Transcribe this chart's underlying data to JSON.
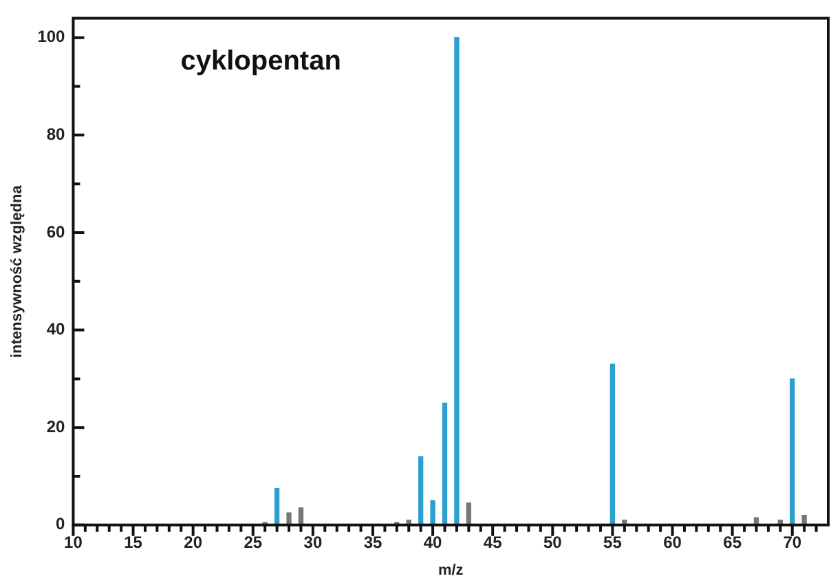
{
  "chart_data": {
    "type": "bar",
    "title": "cyklopentan",
    "xlabel": "m/z",
    "ylabel": "intensywność względna",
    "x": [
      26,
      27,
      28,
      29,
      37,
      38,
      39,
      40,
      41,
      42,
      43,
      55,
      56,
      67,
      69,
      70,
      71
    ],
    "values": [
      0.5,
      7.5,
      2.5,
      3.5,
      0.5,
      1,
      14,
      5,
      25,
      100,
      4.5,
      33,
      1,
      1.5,
      1,
      30,
      2
    ],
    "colors": [
      "#777777",
      "#2a9fd0",
      "#777777",
      "#777777",
      "#777777",
      "#777777",
      "#2a9fd0",
      "#2a9fd0",
      "#2a9fd0",
      "#2a9fd0",
      "#777777",
      "#2a9fd0",
      "#777777",
      "#777777",
      "#777777",
      "#2a9fd0",
      "#777777"
    ],
    "xlim": [
      10,
      73
    ],
    "xticks": [
      10,
      {
        "value": 11,
        "label": null
      },
      {
        "value": 12,
        "label": null
      },
      {
        "value": 13,
        "label": null
      },
      {
        "value": 14,
        "label": null
      },
      15,
      {
        "value": 16,
        "label": null
      },
      {
        "value": 17,
        "label": null
      },
      {
        "value": 18,
        "label": null
      },
      {
        "value": 19,
        "label": null
      },
      20,
      {
        "value": 21,
        "label": null
      },
      {
        "value": 22,
        "label": null
      },
      {
        "value": 23,
        "label": null
      },
      {
        "value": 24,
        "label": null
      },
      25,
      {
        "value": 26,
        "label": null
      },
      {
        "value": 27,
        "label": null
      },
      {
        "value": 28,
        "label": null
      },
      {
        "value": 29,
        "label": null
      },
      30,
      {
        "value": 31,
        "label": null
      },
      {
        "value": 32,
        "label": null
      },
      {
        "value": 33,
        "label": null
      },
      {
        "value": 34,
        "label": null
      },
      35,
      {
        "value": 36,
        "label": null
      },
      {
        "value": 37,
        "label": null
      },
      {
        "value": 38,
        "label": null
      },
      {
        "value": 39,
        "label": null
      },
      40,
      {
        "value": 41,
        "label": null
      },
      {
        "value": 42,
        "label": null
      },
      {
        "value": 43,
        "label": null
      },
      {
        "value": 44,
        "label": null
      },
      45,
      {
        "value": 46,
        "label": null
      },
      {
        "value": 47,
        "label": null
      },
      {
        "value": 48,
        "label": null
      },
      {
        "value": 49,
        "label": null
      },
      50,
      {
        "value": 51,
        "label": null
      },
      {
        "value": 52,
        "label": null
      },
      {
        "value": 53,
        "label": null
      },
      {
        "value": 54,
        "label": null
      },
      55,
      {
        "value": 56,
        "label": null
      },
      {
        "value": 57,
        "label": null
      },
      {
        "value": 58,
        "label": null
      },
      {
        "value": 59,
        "label": null
      },
      60,
      {
        "value": 61,
        "label": null
      },
      {
        "value": 62,
        "label": null
      },
      {
        "value": 63,
        "label": null
      },
      {
        "value": 64,
        "label": null
      },
      65,
      {
        "value": 66,
        "label": null
      },
      {
        "value": 67,
        "label": null
      },
      {
        "value": 68,
        "label": null
      },
      {
        "value": 69,
        "label": null
      },
      70,
      {
        "value": 71,
        "label": null
      },
      {
        "value": 72,
        "label": null
      }
    ],
    "ylim": [
      0,
      104
    ],
    "yticks": [
      0,
      {
        "value": 10,
        "label": null
      },
      20,
      {
        "value": 30,
        "label": null
      },
      40,
      {
        "value": 50,
        "label": null
      },
      60,
      {
        "value": 70,
        "label": null
      },
      80,
      {
        "value": 90,
        "label": null
      },
      100
    ],
    "grid": false,
    "legend": false
  }
}
